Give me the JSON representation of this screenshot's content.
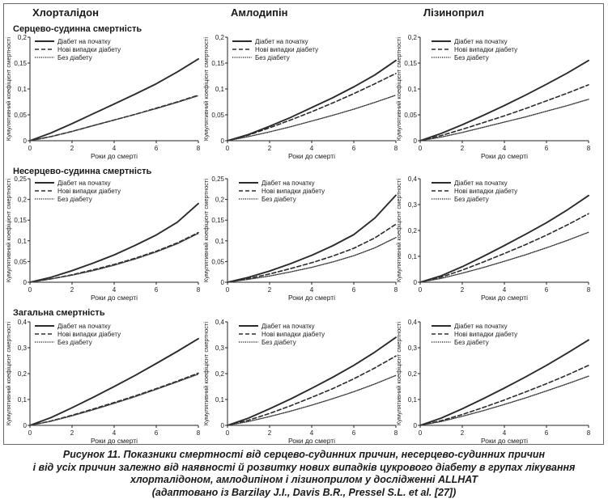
{
  "columns": [
    "Хлорталідон",
    "Амлодипін",
    "Лізиноприл"
  ],
  "rows": [
    "Серцево-судинна смертність",
    "Несерцево-судинна смертність",
    "Загальна смертність"
  ],
  "caption": {
    "line1": "Рисунок 11. Показники смертності від серцево-судинних причин, несерцево-судинних причин",
    "line2": "і від усіх причин залежно від наявності й розвитку нових випадків цукрового діабету в групах лікування",
    "line3": "хлорталідоном, амлодипіном і лізиноприлом у дослідженні ALLHAT",
    "line4": "(адаптовано із Barzilay J.I., Davis B.R., Pressel S.L. et al. [27])"
  },
  "chart_data": [
    {
      "type": "line",
      "column": "Хлорталідон",
      "row": "Серцево-судинна смертність",
      "xlabel": "Роки до смерті",
      "ylabel": "Кумулятивний коефіцієнт смертності",
      "xlim": [
        0,
        8
      ],
      "ylim": [
        0,
        0.2
      ],
      "xticks": [
        "0",
        "2",
        "4",
        "6",
        "8"
      ],
      "yticks": [
        "0",
        "0,05",
        "0,1",
        "0,15",
        "0,2"
      ],
      "legend": "top-left",
      "series": [
        {
          "name": "Діабет на початку",
          "style": "solid",
          "x": [
            0,
            1,
            2,
            3,
            4,
            5,
            6,
            7,
            8
          ],
          "y": [
            0,
            0.015,
            0.033,
            0.052,
            0.071,
            0.09,
            0.11,
            0.133,
            0.158
          ]
        },
        {
          "name": "Нові випадки діабету",
          "style": "dashed",
          "x": [
            0,
            1,
            2,
            3,
            4,
            5,
            6,
            7,
            8
          ],
          "y": [
            0,
            0.008,
            0.018,
            0.029,
            0.04,
            0.051,
            0.063,
            0.075,
            0.088
          ]
        },
        {
          "name": "Без діабету",
          "style": "dotted",
          "x": [
            0,
            1,
            2,
            3,
            4,
            5,
            6,
            7,
            8
          ],
          "y": [
            0,
            0.008,
            0.018,
            0.029,
            0.04,
            0.051,
            0.062,
            0.074,
            0.087
          ]
        }
      ]
    },
    {
      "type": "line",
      "column": "Амлодипін",
      "row": "Серцево-судинна смертність",
      "xlabel": "Роки до смерті",
      "ylabel": "Кумулятивний коефіцієнт смертності",
      "xlim": [
        0,
        8
      ],
      "ylim": [
        0,
        0.2
      ],
      "xticks": [
        "0",
        "2",
        "4",
        "6",
        "8"
      ],
      "yticks": [
        "0",
        "0,05",
        "0,1",
        "0,15",
        "0,2"
      ],
      "legend": "top-left",
      "series": [
        {
          "name": "Діабет на початку",
          "style": "solid",
          "x": [
            0,
            1,
            2,
            3,
            4,
            5,
            6,
            7,
            8
          ],
          "y": [
            0,
            0.012,
            0.028,
            0.045,
            0.064,
            0.083,
            0.104,
            0.127,
            0.155
          ]
        },
        {
          "name": "Нові випадки діабету",
          "style": "dashed",
          "x": [
            0,
            1,
            2,
            3,
            4,
            5,
            6,
            7,
            8
          ],
          "y": [
            0,
            0.011,
            0.025,
            0.04,
            0.056,
            0.073,
            0.091,
            0.11,
            0.13
          ]
        },
        {
          "name": "Без діабету",
          "style": "dotted",
          "x": [
            0,
            1,
            2,
            3,
            4,
            5,
            6,
            7,
            8
          ],
          "y": [
            0,
            0.008,
            0.017,
            0.027,
            0.038,
            0.049,
            0.061,
            0.074,
            0.088
          ]
        }
      ]
    },
    {
      "type": "line",
      "column": "Лізиноприл",
      "row": "Серцево-судинна смертність",
      "xlabel": "Роки до смерті",
      "ylabel": "Кумулятивний коефіцієнт смертності",
      "xlim": [
        0,
        8
      ],
      "ylim": [
        0,
        0.2
      ],
      "xticks": [
        "0",
        "2",
        "4",
        "6",
        "8"
      ],
      "yticks": [
        "0",
        "0,05",
        "0,1",
        "0,15",
        "0,2"
      ],
      "legend": "top-right",
      "series": [
        {
          "name": "Діабет на початку",
          "style": "solid",
          "x": [
            0,
            1,
            2,
            3,
            4,
            5,
            6,
            7,
            8
          ],
          "y": [
            0,
            0.014,
            0.031,
            0.049,
            0.068,
            0.088,
            0.109,
            0.131,
            0.155
          ]
        },
        {
          "name": "Нові випадки діабету",
          "style": "dashed",
          "x": [
            0,
            1,
            2,
            3,
            4,
            5,
            6,
            7,
            8
          ],
          "y": [
            0,
            0.01,
            0.022,
            0.035,
            0.048,
            0.062,
            0.077,
            0.092,
            0.108
          ]
        },
        {
          "name": "Без діабету",
          "style": "dotted",
          "x": [
            0,
            1,
            2,
            3,
            4,
            5,
            6,
            7,
            8
          ],
          "y": [
            0,
            0.007,
            0.016,
            0.026,
            0.036,
            0.046,
            0.057,
            0.068,
            0.08
          ]
        }
      ]
    },
    {
      "type": "line",
      "column": "Хлорталідон",
      "row": "Несерцево-судинна смертність",
      "xlabel": "Роки до смерті",
      "ylabel": "Кумулятивний коефіцієнт смертності",
      "xlim": [
        0,
        8
      ],
      "ylim": [
        0,
        0.25
      ],
      "xticks": [
        "0",
        "2",
        "4",
        "6",
        "8"
      ],
      "yticks": [
        "0",
        "0,05",
        "0,1",
        "0,15",
        "0,2",
        "0,25"
      ],
      "legend": "top-left",
      "series": [
        {
          "name": "Діабет на початку",
          "style": "solid",
          "x": [
            0,
            1,
            2,
            3,
            4,
            5,
            6,
            7,
            8
          ],
          "y": [
            0,
            0.012,
            0.028,
            0.046,
            0.066,
            0.089,
            0.114,
            0.145,
            0.19
          ]
        },
        {
          "name": "Нові випадки діабету",
          "style": "dashed",
          "x": [
            0,
            1,
            2,
            3,
            4,
            5,
            6,
            7,
            8
          ],
          "y": [
            0,
            0.008,
            0.018,
            0.03,
            0.043,
            0.058,
            0.075,
            0.095,
            0.12
          ]
        },
        {
          "name": "Без діабету",
          "style": "dotted",
          "x": [
            0,
            1,
            2,
            3,
            4,
            5,
            6,
            7,
            8
          ],
          "y": [
            0,
            0.008,
            0.017,
            0.028,
            0.041,
            0.056,
            0.073,
            0.093,
            0.118
          ]
        }
      ]
    },
    {
      "type": "line",
      "column": "Амлодипін",
      "row": "Несерцево-судинна смертність",
      "xlabel": "Роки до смерті",
      "ylabel": "Кумулятивний коефіцієнт смертності",
      "xlim": [
        0,
        8
      ],
      "ylim": [
        0,
        0.25
      ],
      "xticks": [
        "0",
        "2",
        "4",
        "6",
        "8"
      ],
      "yticks": [
        "0",
        "0,05",
        "0,1",
        "0,15",
        "0,2",
        "0,25"
      ],
      "legend": "top-right",
      "series": [
        {
          "name": "Діабет на початку",
          "style": "solid",
          "x": [
            0,
            1,
            2,
            3,
            4,
            5,
            6,
            7,
            8
          ],
          "y": [
            0,
            0.012,
            0.027,
            0.045,
            0.065,
            0.088,
            0.115,
            0.155,
            0.21
          ]
        },
        {
          "name": "Нові випадки діабету",
          "style": "dashed",
          "x": [
            0,
            1,
            2,
            3,
            4,
            5,
            6,
            7,
            8
          ],
          "y": [
            0,
            0.009,
            0.02,
            0.033,
            0.047,
            0.063,
            0.082,
            0.107,
            0.14
          ]
        },
        {
          "name": "Без діабету",
          "style": "dotted",
          "x": [
            0,
            1,
            2,
            3,
            4,
            5,
            6,
            7,
            8
          ],
          "y": [
            0,
            0.007,
            0.015,
            0.025,
            0.036,
            0.049,
            0.064,
            0.083,
            0.108
          ]
        }
      ]
    },
    {
      "type": "line",
      "column": "Лізиноприл",
      "row": "Несерцево-судинна смертність",
      "xlabel": "Роки до смерті",
      "ylabel": "Кумулятивний коефіцієнт смертності",
      "xlim": [
        0,
        8
      ],
      "ylim": [
        0,
        0.4
      ],
      "xticks": [
        "0",
        "2",
        "4",
        "6",
        "8"
      ],
      "yticks": [
        "0",
        "0,1",
        "0,2",
        "0,3",
        "0,4"
      ],
      "legend": "top-right",
      "series": [
        {
          "name": "Діабет на початку",
          "style": "solid",
          "x": [
            0,
            1,
            2,
            3,
            4,
            5,
            6,
            7,
            8
          ],
          "y": [
            0,
            0.025,
            0.06,
            0.1,
            0.142,
            0.185,
            0.23,
            0.28,
            0.335
          ]
        },
        {
          "name": "Нові випадки діабету",
          "style": "dashed",
          "x": [
            0,
            1,
            2,
            3,
            4,
            5,
            6,
            7,
            8
          ],
          "y": [
            0,
            0.02,
            0.047,
            0.078,
            0.111,
            0.145,
            0.182,
            0.222,
            0.265
          ]
        },
        {
          "name": "Без діабету",
          "style": "dotted",
          "x": [
            0,
            1,
            2,
            3,
            4,
            5,
            6,
            7,
            8
          ],
          "y": [
            0,
            0.015,
            0.035,
            0.057,
            0.081,
            0.106,
            0.133,
            0.162,
            0.193
          ]
        }
      ]
    },
    {
      "type": "line",
      "column": "Хлорталідон",
      "row": "Загальна смертність",
      "xlabel": "Роки до смерті",
      "ylabel": "Кумулятивний коефіцієнт смертності",
      "xlim": [
        0,
        8
      ],
      "ylim": [
        0,
        0.4
      ],
      "xticks": [
        "0",
        "2",
        "4",
        "6",
        "8"
      ],
      "yticks": [
        "0",
        "0,1",
        "0,2",
        "0,3",
        "0,4"
      ],
      "legend": "top-left",
      "series": [
        {
          "name": "Діабет на початку",
          "style": "solid",
          "x": [
            0,
            1,
            2,
            3,
            4,
            5,
            6,
            7,
            8
          ],
          "y": [
            0,
            0.03,
            0.068,
            0.108,
            0.15,
            0.193,
            0.239,
            0.286,
            0.335
          ]
        },
        {
          "name": "Нові випадки діабету",
          "style": "dashed",
          "x": [
            0,
            1,
            2,
            3,
            4,
            5,
            6,
            7,
            8
          ],
          "y": [
            0,
            0.017,
            0.039,
            0.063,
            0.088,
            0.114,
            0.142,
            0.171,
            0.202
          ]
        },
        {
          "name": "Без діабету",
          "style": "dotted",
          "x": [
            0,
            1,
            2,
            3,
            4,
            5,
            6,
            7,
            8
          ],
          "y": [
            0,
            0.016,
            0.037,
            0.06,
            0.085,
            0.111,
            0.139,
            0.168,
            0.198
          ]
        }
      ]
    },
    {
      "type": "line",
      "column": "Амлодипін",
      "row": "Загальна смертність",
      "xlabel": "Роки до смерті",
      "ylabel": "Кумулятивний коефіцієнт смертності",
      "xlim": [
        0,
        8
      ],
      "ylim": [
        0,
        0.4
      ],
      "xticks": [
        "0",
        "2",
        "4",
        "6",
        "8"
      ],
      "yticks": [
        "0",
        "0,1",
        "0,2",
        "0,3",
        "0,4"
      ],
      "legend": "top-right",
      "series": [
        {
          "name": "Діабет на початку",
          "style": "solid",
          "x": [
            0,
            1,
            2,
            3,
            4,
            5,
            6,
            7,
            8
          ],
          "y": [
            0,
            0.028,
            0.064,
            0.102,
            0.143,
            0.186,
            0.232,
            0.283,
            0.34
          ]
        },
        {
          "name": "Нові випадки діабету",
          "style": "dashed",
          "x": [
            0,
            1,
            2,
            3,
            4,
            5,
            6,
            7,
            8
          ],
          "y": [
            0,
            0.02,
            0.046,
            0.076,
            0.108,
            0.142,
            0.18,
            0.222,
            0.268
          ]
        },
        {
          "name": "Без діабету",
          "style": "dotted",
          "x": [
            0,
            1,
            2,
            3,
            4,
            5,
            6,
            7,
            8
          ],
          "y": [
            0,
            0.015,
            0.034,
            0.055,
            0.078,
            0.103,
            0.13,
            0.16,
            0.193
          ]
        }
      ]
    },
    {
      "type": "line",
      "column": "Лізиноприл",
      "row": "Загальна смертність",
      "xlabel": "Роки до смерті",
      "ylabel": "Кумулятивний коефіцієнт смертності",
      "xlim": [
        0,
        8
      ],
      "ylim": [
        0,
        0.4
      ],
      "xticks": [
        "0",
        "2",
        "4",
        "6",
        "8"
      ],
      "yticks": [
        "0",
        "0,1",
        "0,2",
        "0,3",
        "0,4"
      ],
      "legend": "top-right",
      "series": [
        {
          "name": "Діабет на початку",
          "style": "solid",
          "x": [
            0,
            1,
            2,
            3,
            4,
            5,
            6,
            7,
            8
          ],
          "y": [
            0,
            0.028,
            0.064,
            0.103,
            0.144,
            0.187,
            0.232,
            0.28,
            0.33
          ]
        },
        {
          "name": "Нові випадки діабету",
          "style": "dashed",
          "x": [
            0,
            1,
            2,
            3,
            4,
            5,
            6,
            7,
            8
          ],
          "y": [
            0,
            0.018,
            0.042,
            0.069,
            0.098,
            0.129,
            0.161,
            0.195,
            0.232
          ]
        },
        {
          "name": "Без діабету",
          "style": "dotted",
          "x": [
            0,
            1,
            2,
            3,
            4,
            5,
            6,
            7,
            8
          ],
          "y": [
            0,
            0.015,
            0.035,
            0.057,
            0.081,
            0.106,
            0.133,
            0.161,
            0.19
          ]
        }
      ]
    }
  ]
}
